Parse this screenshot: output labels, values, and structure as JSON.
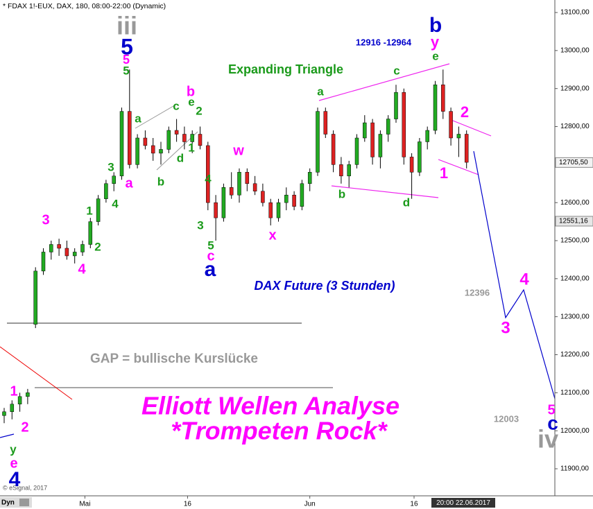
{
  "chart_data": {
    "type": "candlestick",
    "title": "* FDAX 1!-EUX, DAX, 180, 08:00-22:00 (Dynamic)",
    "up_color": "#22aa22",
    "down_color": "#dd2222",
    "ylim": [
      11850,
      13130
    ],
    "yticks": [
      {
        "value": 11900,
        "label": "11900,00"
      },
      {
        "value": 12000,
        "label": "12000,00"
      },
      {
        "value": 12100,
        "label": "12100,00"
      },
      {
        "value": 12200,
        "label": "12200,00"
      },
      {
        "value": 12300,
        "label": "12300,00"
      },
      {
        "value": 12400,
        "label": "12400,00"
      },
      {
        "value": 12500,
        "label": "12500,00"
      },
      {
        "value": 12600,
        "label": "12600,00"
      },
      {
        "value": 12700,
        "label": "12700,00"
      },
      {
        "value": 12800,
        "label": "12800,00"
      },
      {
        "value": 12900,
        "label": "12900,00"
      },
      {
        "value": 13000,
        "label": "13000,00"
      },
      {
        "value": 13100,
        "label": "13100,00"
      }
    ],
    "price_markers": [
      {
        "value": 12705.5,
        "label": "12705,50"
      },
      {
        "value": 12551.16,
        "label": "12551,16"
      }
    ],
    "xtick_labels": [
      "Mai",
      "16",
      "Jun",
      "16"
    ],
    "cursor_label": "20:00 22.06.2017",
    "footer_left": "Dyn",
    "copyright": "© eSignal, 2017",
    "candles": [
      [
        12040,
        12060,
        12020,
        12050
      ],
      [
        12050,
        12080,
        12030,
        12070
      ],
      [
        12070,
        12100,
        12050,
        12090
      ],
      [
        12090,
        12110,
        12070,
        12100
      ],
      [
        12280,
        12430,
        12270,
        12420
      ],
      [
        12420,
        12480,
        12410,
        12470
      ],
      [
        12470,
        12500,
        12450,
        12490
      ],
      [
        12490,
        12505,
        12460,
        12480
      ],
      [
        12480,
        12500,
        12450,
        12460
      ],
      [
        12460,
        12480,
        12440,
        12470
      ],
      [
        12470,
        12500,
        12460,
        12490
      ],
      [
        12490,
        12560,
        12480,
        12550
      ],
      [
        12550,
        12620,
        12540,
        12610
      ],
      [
        12610,
        12660,
        12600,
        12650
      ],
      [
        12650,
        12680,
        12630,
        12670
      ],
      [
        12670,
        12850,
        12660,
        12840
      ],
      [
        12840,
        12950,
        12690,
        12700
      ],
      [
        12700,
        12780,
        12690,
        12770
      ],
      [
        12770,
        12790,
        12740,
        12750
      ],
      [
        12750,
        12770,
        12710,
        12730
      ],
      [
        12730,
        12760,
        12700,
        12740
      ],
      [
        12740,
        12800,
        12730,
        12790
      ],
      [
        12790,
        12820,
        12760,
        12780
      ],
      [
        12780,
        12800,
        12740,
        12760
      ],
      [
        12760,
        12790,
        12730,
        12780
      ],
      [
        12780,
        12800,
        12740,
        12750
      ],
      [
        12750,
        12760,
        12580,
        12600
      ],
      [
        12600,
        12620,
        12500,
        12560
      ],
      [
        12560,
        12650,
        12550,
        12640
      ],
      [
        12640,
        12680,
        12610,
        12620
      ],
      [
        12620,
        12690,
        12600,
        12680
      ],
      [
        12680,
        12690,
        12630,
        12650
      ],
      [
        12650,
        12670,
        12620,
        12630
      ],
      [
        12630,
        12650,
        12590,
        12600
      ],
      [
        12600,
        12610,
        12540,
        12560
      ],
      [
        12560,
        12610,
        12550,
        12600
      ],
      [
        12600,
        12640,
        12580,
        12620
      ],
      [
        12620,
        12630,
        12580,
        12590
      ],
      [
        12590,
        12660,
        12580,
        12650
      ],
      [
        12650,
        12690,
        12630,
        12680
      ],
      [
        12680,
        12850,
        12670,
        12840
      ],
      [
        12840,
        12850,
        12770,
        12780
      ],
      [
        12780,
        12790,
        12680,
        12700
      ],
      [
        12700,
        12720,
        12650,
        12670
      ],
      [
        12670,
        12710,
        12640,
        12700
      ],
      [
        12700,
        12780,
        12690,
        12770
      ],
      [
        12770,
        12830,
        12760,
        12810
      ],
      [
        12810,
        12820,
        12700,
        12720
      ],
      [
        12720,
        12790,
        12690,
        12780
      ],
      [
        12780,
        12830,
        12760,
        12820
      ],
      [
        12820,
        12910,
        12810,
        12890
      ],
      [
        12890,
        12900,
        12700,
        12720
      ],
      [
        12720,
        12730,
        12610,
        12680
      ],
      [
        12680,
        12770,
        12670,
        12760
      ],
      [
        12760,
        12800,
        12740,
        12790
      ],
      [
        12790,
        12920,
        12780,
        12910
      ],
      [
        12910,
        12950,
        12820,
        12840
      ],
      [
        12840,
        12850,
        12750,
        12770
      ],
      [
        12770,
        12800,
        12720,
        12780
      ],
      [
        12780,
        12790,
        12690,
        12706
      ]
    ],
    "annotations": [
      {
        "text": "iii",
        "color": "#999999"
      },
      {
        "text": "5",
        "color": "#0000cc"
      },
      {
        "text": "5",
        "color": "#ff00ff"
      },
      {
        "text": "5",
        "color": "#1a9a1a"
      },
      {
        "text": "b",
        "color": "#0000cc"
      },
      {
        "text": "y",
        "color": "#ff00ff"
      },
      {
        "text": "e",
        "color": "#1a9a1a"
      },
      {
        "text": "12916 -12964",
        "color": "#0000cc"
      },
      {
        "text": "Expanding Triangle",
        "color": "#1a9a1a"
      },
      {
        "text": "a",
        "color": "#1a9a1a"
      },
      {
        "text": "c",
        "color": "#1a9a1a"
      },
      {
        "text": "b",
        "color": "#1a9a1a"
      },
      {
        "text": "d",
        "color": "#1a9a1a"
      },
      {
        "text": "2",
        "color": "#ff00ff"
      },
      {
        "text": "1",
        "color": "#ff00ff"
      },
      {
        "text": "b",
        "color": "#ff00ff"
      },
      {
        "text": "e",
        "color": "#1a9a1a"
      },
      {
        "text": "2",
        "color": "#1a9a1a"
      },
      {
        "text": "c",
        "color": "#1a9a1a"
      },
      {
        "text": "a",
        "color": "#1a9a1a"
      },
      {
        "text": "1",
        "color": "#1a9a1a"
      },
      {
        "text": "d",
        "color": "#1a9a1a"
      },
      {
        "text": "b",
        "color": "#1a9a1a"
      },
      {
        "text": "w",
        "color": "#ff00ff"
      },
      {
        "text": "4",
        "color": "#1a9a1a"
      },
      {
        "text": "3",
        "color": "#1a9a1a"
      },
      {
        "text": "5",
        "color": "#1a9a1a"
      },
      {
        "text": "c",
        "color": "#ff00ff"
      },
      {
        "text": "a",
        "color": "#0000cc"
      },
      {
        "text": "x",
        "color": "#ff00ff"
      },
      {
        "text": "3",
        "color": "#1a9a1a"
      },
      {
        "text": "4",
        "color": "#1a9a1a"
      },
      {
        "text": "a",
        "color": "#ff00ff"
      },
      {
        "text": "1",
        "color": "#1a9a1a"
      },
      {
        "text": "2",
        "color": "#1a9a1a"
      },
      {
        "text": "3",
        "color": "#ff00ff"
      },
      {
        "text": "4",
        "color": "#ff00ff"
      },
      {
        "text": "DAX Future (3 Stunden)",
        "color": "#0000cc"
      },
      {
        "text": "12396",
        "color": "#999999"
      },
      {
        "text": "4",
        "color": "#ff00ff"
      },
      {
        "text": "3",
        "color": "#ff00ff"
      },
      {
        "text": "GAP = bullische Kurslücke",
        "color": "#999999"
      },
      {
        "text": "Elliott Wellen Analyse",
        "color": "#ff00ff"
      },
      {
        "text": "*Trompeten Rock*",
        "color": "#ff00ff"
      },
      {
        "text": "12003",
        "color": "#999999"
      },
      {
        "text": "5",
        "color": "#ff00ff"
      },
      {
        "text": "c",
        "color": "#0000cc"
      },
      {
        "text": "iv",
        "color": "#999999"
      },
      {
        "text": "1",
        "color": "#ff00ff"
      },
      {
        "text": "2",
        "color": "#ff00ff"
      },
      {
        "text": "y",
        "color": "#1a9a1a"
      },
      {
        "text": "e",
        "color": "#ff00ff"
      },
      {
        "text": "4",
        "color": "#0000cc"
      }
    ]
  }
}
